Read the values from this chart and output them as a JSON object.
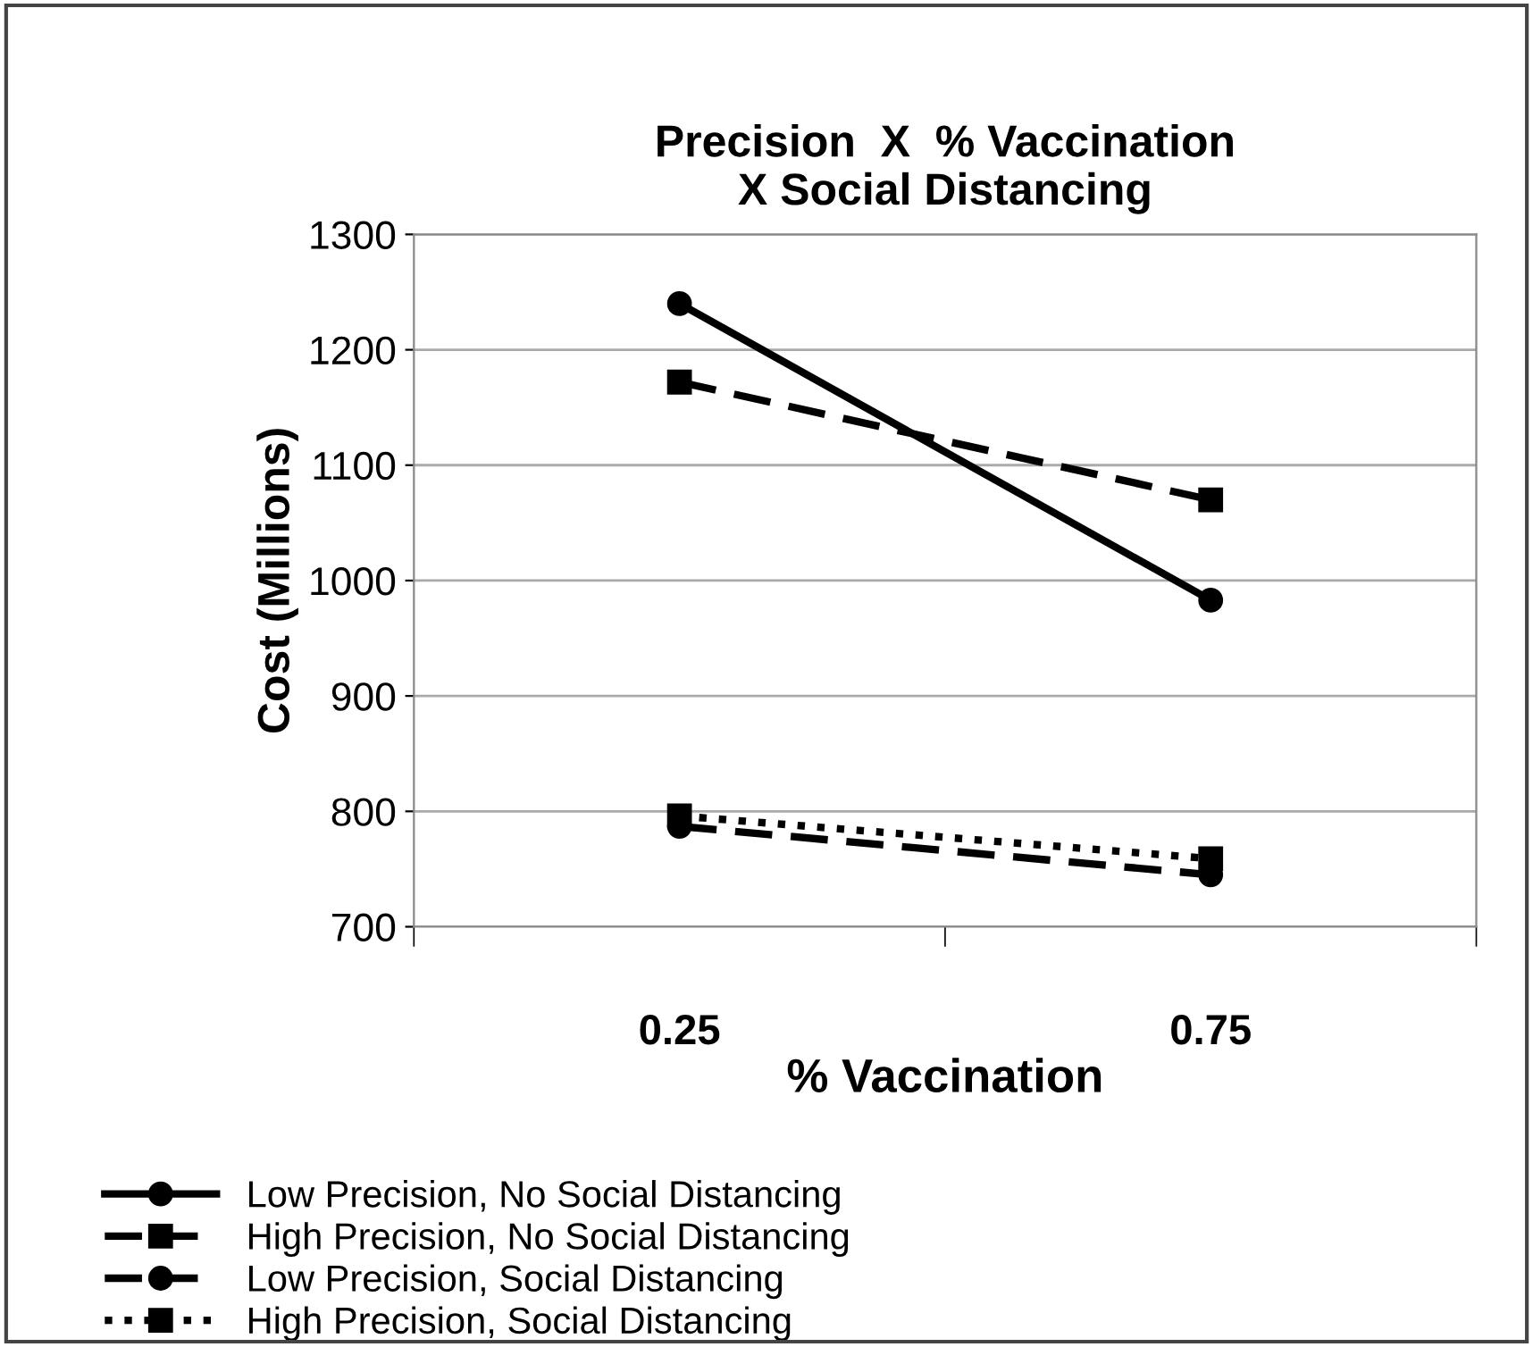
{
  "chart_data": {
    "type": "line",
    "title": "Precision  X  % Vaccination\nX Social Distancing",
    "xlabel": "% Vaccination",
    "ylabel": "Cost (Millions)",
    "categories": [
      "0.25",
      "0.75"
    ],
    "series": [
      {
        "name": "Low Precision, No Social Distancing",
        "color": "#000000",
        "values": [
          1240,
          983
        ],
        "marker": "circle",
        "line_style": "solid"
      },
      {
        "name": "High Precision, No Social Distancing",
        "color": "#000000",
        "values": [
          1172,
          1070
        ],
        "marker": "square",
        "line_style": "dashed"
      },
      {
        "name": "Low Precision, Social Distancing",
        "color": "#000000",
        "values": [
          787,
          745
        ],
        "marker": "circle",
        "line_style": "dashed"
      },
      {
        "name": "High Precision, Social Distancing",
        "color": "#000000",
        "values": [
          796,
          759
        ],
        "marker": "square",
        "line_style": "dotted"
      }
    ],
    "ylim": [
      700,
      1300
    ],
    "yticks": [
      700,
      800,
      900,
      1000,
      1100,
      1200,
      1300
    ],
    "grid": "y",
    "legend": "bottom"
  }
}
